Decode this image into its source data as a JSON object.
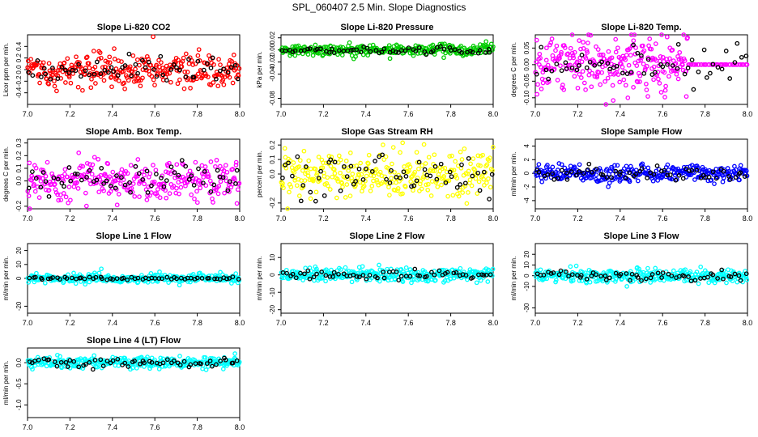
{
  "title": "SPL_060407  2.5 Min. Slope Diagnostics",
  "colors": {
    "co2": "#ff0000",
    "pressure": "#00cc00",
    "temp": "#ff00ff",
    "rh": "#ffff00",
    "flow": "#0000ff",
    "line": "#00ffff",
    "reference": "#000000"
  },
  "chart_data": [
    {
      "type": "scatter",
      "title": "Slope Li-820 CO2",
      "xlabel": "",
      "ylabel": "Licor ppm per min.",
      "xlim": [
        7.0,
        8.0
      ],
      "ylim": [
        -0.6,
        0.6
      ],
      "x_ticks": [
        "7.0",
        "7.2",
        "7.4",
        "7.6",
        "7.8",
        "8.0"
      ],
      "y_ticks": [
        {
          "v": -0.4,
          "label": "-0.4"
        },
        {
          "v": -0.2,
          "label": "-0.2"
        },
        {
          "v": 0.0,
          "label": "0.0"
        },
        {
          "v": 0.2,
          "label": "0.2"
        },
        {
          "v": 0.4,
          "label": "0.4"
        }
      ],
      "series": [
        {
          "name": "all",
          "color": "#ff0000",
          "center": 0.0,
          "spread": 0.16,
          "n": 300,
          "seed": 1
        },
        {
          "name": "subset",
          "color": "#000000",
          "center": 0.0,
          "spread": 0.12,
          "n": 60,
          "seed": 2
        }
      ]
    },
    {
      "type": "scatter",
      "title": "Slope Li-820 Pressure",
      "xlabel": "",
      "ylabel": "kPa per min.",
      "xlim": [
        7.0,
        8.0
      ],
      "ylim": [
        -0.09,
        0.025
      ],
      "x_ticks": [
        "7.0",
        "7.2",
        "7.4",
        "7.6",
        "7.8",
        "8.0"
      ],
      "y_ticks": [
        {
          "v": -0.08,
          "label": "-0.08"
        },
        {
          "v": -0.04,
          "label": "-0.04"
        },
        {
          "v": -0.02,
          "label": "-0.02"
        },
        {
          "v": 0.0,
          "label": "0.00"
        },
        {
          "v": 0.02,
          "label": "0.02"
        }
      ],
      "series": [
        {
          "name": "all",
          "color": "#00cc00",
          "center": 0.0,
          "spread": 0.005,
          "n": 300,
          "seed": 3
        },
        {
          "name": "subset",
          "color": "#000000",
          "center": 0.0,
          "spread": 0.003,
          "n": 60,
          "seed": 4
        }
      ]
    },
    {
      "type": "scatter",
      "title": "Slope Li-820 Temp.",
      "xlabel": "",
      "ylabel": "degrees C per min.",
      "xlim": [
        7.0,
        8.0
      ],
      "ylim": [
        -0.12,
        0.09
      ],
      "x_ticks": [
        "7.0",
        "7.2",
        "7.4",
        "7.6",
        "7.8",
        "8.0"
      ],
      "y_ticks": [
        {
          "v": -0.1,
          "label": "-0.10"
        },
        {
          "v": -0.05,
          "label": "-0.05"
        },
        {
          "v": 0.0,
          "label": "0.00"
        },
        {
          "v": 0.05,
          "label": "0.05"
        }
      ],
      "series": [
        {
          "name": "all",
          "color": "#ff00ff",
          "center": 0.0,
          "spread": 0.04,
          "n": 260,
          "seed": 5,
          "xmax": 7.72
        },
        {
          "name": "flat",
          "color": "#ff00ff",
          "center": 0.0,
          "spread": 0.0,
          "n": 40,
          "seed": 6,
          "xmin": 7.72,
          "xmax": 8.0
        },
        {
          "name": "subset",
          "color": "#000000",
          "center": 0.0,
          "spread": 0.03,
          "n": 55,
          "seed": 7
        }
      ]
    },
    {
      "type": "scatter",
      "title": "Slope Amb. Box Temp.",
      "xlabel": "",
      "ylabel": "degrees C per min.",
      "xlim": [
        7.0,
        8.0
      ],
      "ylim": [
        -0.22,
        0.33
      ],
      "x_ticks": [
        "7.0",
        "7.2",
        "7.4",
        "7.6",
        "7.8",
        "8.0"
      ],
      "y_ticks": [
        {
          "v": -0.2,
          "label": "-0.2"
        },
        {
          "v": 0.0,
          "label": "0.0"
        },
        {
          "v": 0.1,
          "label": "0.1"
        },
        {
          "v": 0.2,
          "label": "0.2"
        },
        {
          "v": 0.3,
          "label": "0.3"
        }
      ],
      "series": [
        {
          "name": "all",
          "color": "#ff00ff",
          "center": 0.0,
          "spread": 0.08,
          "n": 300,
          "seed": 8
        },
        {
          "name": "subset",
          "color": "#000000",
          "center": 0.0,
          "spread": 0.06,
          "n": 60,
          "seed": 9
        }
      ]
    },
    {
      "type": "scatter",
      "title": "Slope Gas Stream RH",
      "xlabel": "",
      "ylabel": "percent per min.",
      "xlim": [
        7.0,
        8.0
      ],
      "ylim": [
        -0.24,
        0.24
      ],
      "x_ticks": [
        "7.0",
        "7.2",
        "7.4",
        "7.6",
        "7.8",
        "8.0"
      ],
      "y_ticks": [
        {
          "v": -0.2,
          "label": "-0.2"
        },
        {
          "v": 0.0,
          "label": "0.0"
        },
        {
          "v": 0.1,
          "label": "0.1"
        },
        {
          "v": 0.2,
          "label": "0.2"
        }
      ],
      "series": [
        {
          "name": "all",
          "color": "#ffff00",
          "center": 0.0,
          "spread": 0.08,
          "n": 300,
          "seed": 10
        },
        {
          "name": "subset",
          "color": "#000000",
          "center": 0.0,
          "spread": 0.08,
          "n": 60,
          "seed": 11
        }
      ]
    },
    {
      "type": "scatter",
      "title": "Slope Sample Flow",
      "xlabel": "",
      "ylabel": "ml/min per min.",
      "xlim": [
        7.0,
        8.0
      ],
      "ylim": [
        -5.2,
        5.0
      ],
      "x_ticks": [
        "7.0",
        "7.2",
        "7.4",
        "7.6",
        "7.8",
        "8.0"
      ],
      "y_ticks": [
        {
          "v": -4,
          "label": "-4"
        },
        {
          "v": -2,
          "label": "-2"
        },
        {
          "v": 0,
          "label": "0"
        },
        {
          "v": 2,
          "label": "2"
        },
        {
          "v": 4,
          "label": "4"
        }
      ],
      "series": [
        {
          "name": "all",
          "color": "#0000ff",
          "center": 0.0,
          "spread": 0.6,
          "n": 300,
          "seed": 12
        },
        {
          "name": "subset",
          "color": "#000000",
          "center": 0.0,
          "spread": 0.5,
          "n": 60,
          "seed": 13
        }
      ]
    },
    {
      "type": "scatter",
      "title": "Slope Line 1 Flow",
      "xlabel": "",
      "ylabel": "ml/min per min.",
      "xlim": [
        7.0,
        8.0
      ],
      "ylim": [
        -25,
        25
      ],
      "x_ticks": [
        "7.0",
        "7.2",
        "7.4",
        "7.6",
        "7.8",
        "8.0"
      ],
      "y_ticks": [
        {
          "v": -20,
          "label": "-20"
        },
        {
          "v": 0,
          "label": "0"
        },
        {
          "v": 10,
          "label": "10"
        },
        {
          "v": 20,
          "label": "20"
        }
      ],
      "series": [
        {
          "name": "all",
          "color": "#00ffff",
          "center": 0.0,
          "spread": 1.6,
          "n": 300,
          "seed": 14
        },
        {
          "name": "subset",
          "color": "#000000",
          "center": 0.0,
          "spread": 0.5,
          "n": 60,
          "seed": 15
        }
      ]
    },
    {
      "type": "scatter",
      "title": "Slope Line 2 Flow",
      "xlabel": "",
      "ylabel": "ml/min per min.",
      "xlim": [
        7.0,
        8.0
      ],
      "ylim": [
        -22,
        18
      ],
      "x_ticks": [
        "7.0",
        "7.2",
        "7.4",
        "7.6",
        "7.8",
        "8.0"
      ],
      "y_ticks": [
        {
          "v": -20,
          "label": "-20"
        },
        {
          "v": -10,
          "label": "-10"
        },
        {
          "v": 0,
          "label": "0"
        },
        {
          "v": 10,
          "label": "10"
        }
      ],
      "series": [
        {
          "name": "all",
          "color": "#00ffff",
          "center": 0.0,
          "spread": 2.0,
          "n": 300,
          "seed": 16
        },
        {
          "name": "subset",
          "color": "#000000",
          "center": 0.0,
          "spread": 1.5,
          "n": 60,
          "seed": 17
        }
      ]
    },
    {
      "type": "scatter",
      "title": "Slope Line 3 Flow",
      "xlabel": "",
      "ylabel": "ml/min per min.",
      "xlim": [
        7.0,
        8.0
      ],
      "ylim": [
        -35,
        30
      ],
      "x_ticks": [
        "7.0",
        "7.2",
        "7.4",
        "7.6",
        "7.8",
        "8.0"
      ],
      "y_ticks": [
        {
          "v": -30,
          "label": "-30"
        },
        {
          "v": -10,
          "label": "-10"
        },
        {
          "v": 0,
          "label": "0"
        },
        {
          "v": 10,
          "label": "10"
        },
        {
          "v": 20,
          "label": "20"
        }
      ],
      "series": [
        {
          "name": "all",
          "color": "#00ffff",
          "center": 0.0,
          "spread": 3.0,
          "n": 300,
          "seed": 18
        },
        {
          "name": "subset",
          "color": "#000000",
          "center": 0.0,
          "spread": 2.0,
          "n": 60,
          "seed": 19
        }
      ]
    },
    {
      "type": "scatter",
      "title": "Slope Line 4 (LT) Flow",
      "xlabel": "",
      "ylabel": "ml/min per min.",
      "xlim": [
        7.0,
        8.0
      ],
      "ylim": [
        -1.3,
        0.35
      ],
      "x_ticks": [
        "7.0",
        "7.2",
        "7.4",
        "7.6",
        "7.8",
        "8.0"
      ],
      "y_ticks": [
        {
          "v": -1.0,
          "label": "-1.0"
        },
        {
          "v": -0.5,
          "label": "-0.5"
        },
        {
          "v": 0.0,
          "label": "0.0"
        }
      ],
      "series": [
        {
          "name": "all",
          "color": "#00ffff",
          "center": 0.0,
          "spread": 0.07,
          "n": 300,
          "seed": 20
        },
        {
          "name": "subset",
          "color": "#000000",
          "center": 0.0,
          "spread": 0.05,
          "n": 60,
          "seed": 21
        }
      ]
    }
  ]
}
